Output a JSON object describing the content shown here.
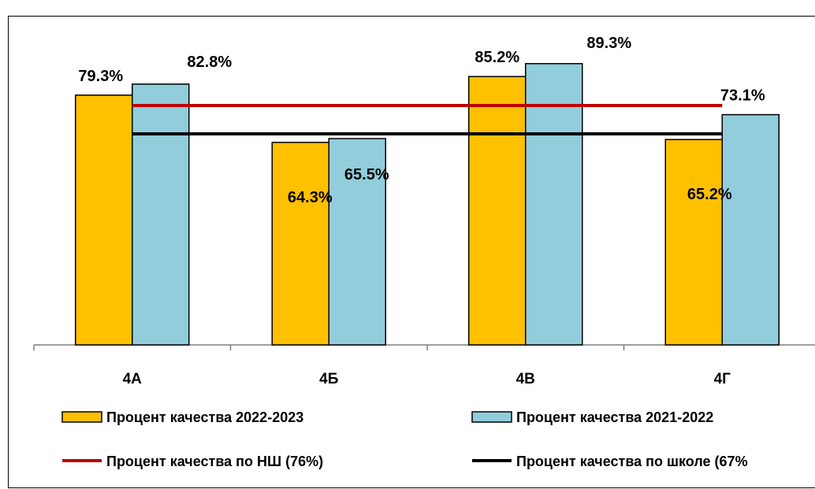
{
  "chart_data": {
    "type": "bar",
    "categories": [
      "4А",
      "4Б",
      "4В",
      "4Г"
    ],
    "series": [
      {
        "name": "Процент качества 2022-2023",
        "values": [
          79.3,
          64.3,
          85.2,
          65.2
        ],
        "labels": [
          "79.3%",
          "64.3%",
          "85.2%",
          "65.2%"
        ],
        "color": "#FFC000"
      },
      {
        "name": "Процент качества 2021-2022",
        "values": [
          82.8,
          65.5,
          89.3,
          73.1
        ],
        "labels": [
          "82.8%",
          "65.5%",
          "89.3%",
          "73.1%"
        ],
        "color": "#92CDDC"
      }
    ],
    "reference_lines": [
      {
        "name": "Процент качества по НШ (76%)",
        "value": 76,
        "color": "#C00000"
      },
      {
        "name": "Процент качества по школе (67%",
        "value": 67,
        "color": "#000000"
      }
    ],
    "legend_position": "bottom",
    "grid": false
  }
}
